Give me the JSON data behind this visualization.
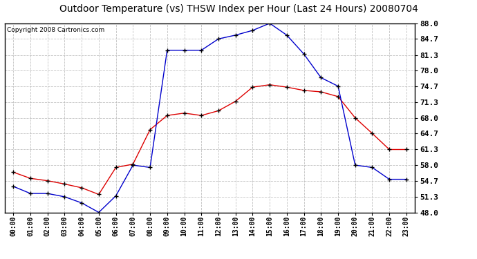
{
  "title": "Outdoor Temperature (vs) THSW Index per Hour (Last 24 Hours) 20080704",
  "copyright": "Copyright 2008 Cartronics.com",
  "hours": [
    "00:00",
    "01:00",
    "02:00",
    "03:00",
    "04:00",
    "05:00",
    "06:00",
    "07:00",
    "08:00",
    "09:00",
    "10:00",
    "11:00",
    "12:00",
    "13:00",
    "14:00",
    "15:00",
    "16:00",
    "17:00",
    "18:00",
    "19:00",
    "20:00",
    "21:00",
    "22:00",
    "23:00"
  ],
  "temp_red": [
    56.5,
    55.2,
    54.7,
    54.0,
    53.2,
    51.8,
    57.5,
    58.2,
    65.5,
    68.5,
    69.0,
    68.5,
    69.5,
    71.5,
    74.5,
    75.0,
    74.5,
    73.8,
    73.5,
    72.5,
    68.0,
    64.7,
    61.3,
    61.3
  ],
  "thsw_blue": [
    53.5,
    52.0,
    52.0,
    51.3,
    50.0,
    48.0,
    51.5,
    58.0,
    57.5,
    82.3,
    82.3,
    82.3,
    84.7,
    85.5,
    86.5,
    88.0,
    85.5,
    81.5,
    76.5,
    74.7,
    58.0,
    57.5,
    55.0,
    55.0
  ],
  "ylim_min": 48.0,
  "ylim_max": 88.0,
  "yticks": [
    48.0,
    51.3,
    54.7,
    58.0,
    61.3,
    64.7,
    68.0,
    71.3,
    74.7,
    78.0,
    81.3,
    84.7,
    88.0
  ],
  "bg_color": "#ffffff",
  "grid_color": "#bbbbbb",
  "title_color": "#000000",
  "red_color": "#dd0000",
  "blue_color": "#0000cc",
  "title_fontsize": 10,
  "copyright_fontsize": 6.5,
  "tick_fontsize": 7,
  "ytick_fontsize": 8
}
